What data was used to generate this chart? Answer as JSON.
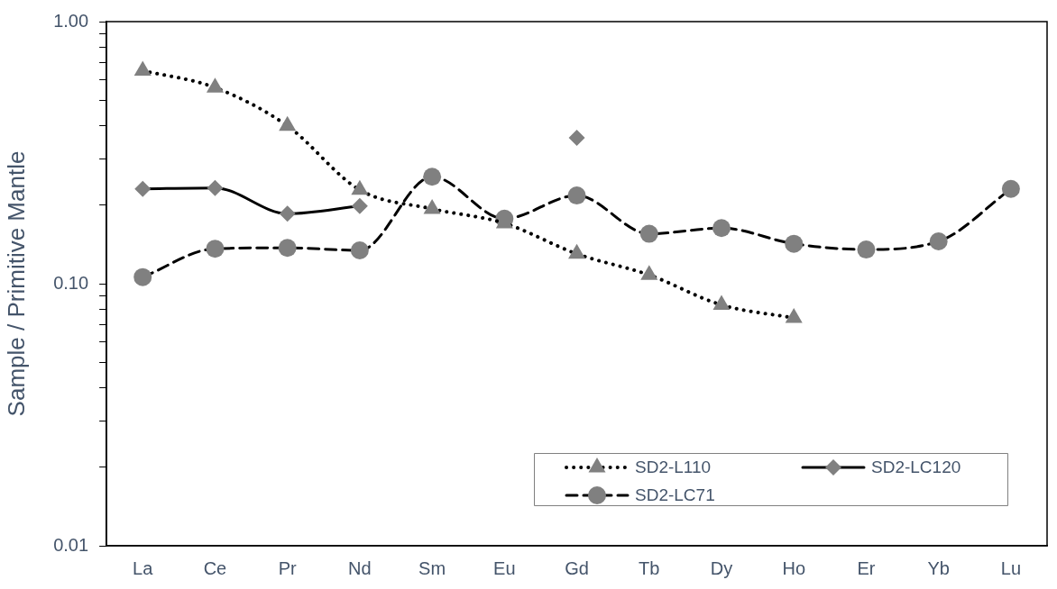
{
  "chart_data": {
    "type": "line",
    "ylabel": "Sample / Primitive Mantle",
    "log": "y",
    "grid": false,
    "legend": "bottom right",
    "categories": [
      "La",
      "Ce",
      "Pr",
      "Nd",
      "Sm",
      "Eu",
      "Gd",
      "Tb",
      "Dy",
      "Ho",
      "Er",
      "Yb",
      "Lu"
    ],
    "ylim": [
      0.01,
      1
    ],
    "yticks": [
      {
        "value": 0.01,
        "label": "0.01"
      },
      {
        "value": 0.02,
        "label": null
      },
      {
        "value": 0.03,
        "label": null
      },
      {
        "value": 0.04,
        "label": null
      },
      {
        "value": 0.05,
        "label": null
      },
      {
        "value": 0.06,
        "label": null
      },
      {
        "value": 0.07,
        "label": null
      },
      {
        "value": 0.08,
        "label": null
      },
      {
        "value": 0.09,
        "label": null
      },
      {
        "value": 0.1,
        "label": "0.10"
      },
      {
        "value": 0.2,
        "label": null
      },
      {
        "value": 0.3,
        "label": null
      },
      {
        "value": 0.4,
        "label": null
      },
      {
        "value": 0.5,
        "label": null
      },
      {
        "value": 0.6,
        "label": null
      },
      {
        "value": 0.7,
        "label": null
      },
      {
        "value": 0.8,
        "label": null
      },
      {
        "value": 0.9,
        "label": null
      },
      {
        "value": 1,
        "label": "1.00"
      }
    ],
    "series": [
      {
        "name": "SD2-L110",
        "color": "#808080",
        "marker": "triangle",
        "line_style": "dotted",
        "values": [
          0.65,
          0.56,
          0.4,
          0.228,
          0.193,
          0.17,
          0.13,
          0.108,
          0.083,
          0.074,
          null,
          null,
          null
        ]
      },
      {
        "name": "SD2-LC120",
        "color": "#808080",
        "marker": "diamond",
        "line_style": "solid",
        "values": [
          0.23,
          0.232,
          0.185,
          0.198,
          null,
          null,
          0.36,
          null,
          null,
          null,
          null,
          null,
          null
        ]
      },
      {
        "name": "SD2-LC71",
        "color": "#808080",
        "marker": "circle",
        "line_style": "dashed",
        "values": [
          0.106,
          0.136,
          0.137,
          0.134,
          0.256,
          0.177,
          0.217,
          0.155,
          0.163,
          0.142,
          0.135,
          0.145,
          0.23
        ]
      }
    ]
  }
}
